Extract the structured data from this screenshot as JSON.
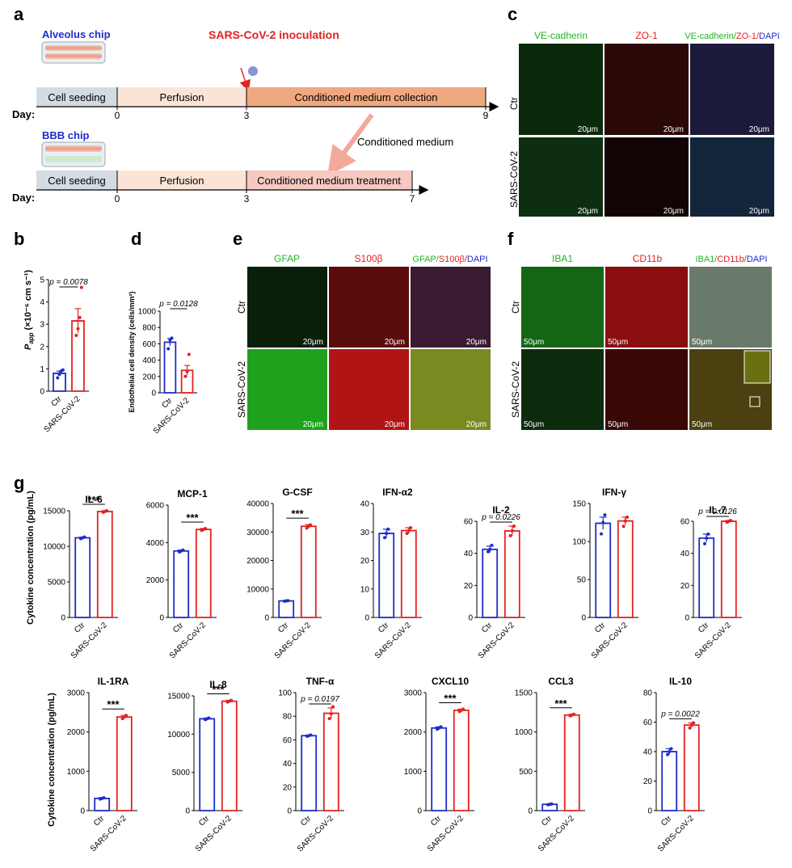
{
  "panel_labels": {
    "a": "a",
    "b": "b",
    "c": "c",
    "d": "d",
    "e": "e",
    "f": "f",
    "g": "g"
  },
  "panel_a": {
    "alveolus_chip": "Alveolus chip",
    "bbb_chip": "BBB chip",
    "inoculation": "SARS-CoV-2 inoculation",
    "conditioned_medium": "Conditioned medium",
    "day_label": "Day:",
    "row1": {
      "seg1": "Cell seeding",
      "seg2": "Perfusion",
      "seg3": "Conditioned medium collection",
      "ticks": [
        "0",
        "3",
        "9"
      ]
    },
    "row2": {
      "seg1": "Cell seeding",
      "seg2": "Perfusion",
      "seg3": "Conditioned medium treatment",
      "ticks": [
        "0",
        "3",
        "7"
      ]
    }
  },
  "panel_c": {
    "columns": [
      "VE-cadherin",
      "ZO-1",
      "VE-cadherin/",
      "ZO-1/",
      "DAPI"
    ],
    "rows": [
      "Ctr",
      "SARS-CoV-2"
    ],
    "scale": "20μm"
  },
  "panel_e": {
    "columns": [
      "GFAP",
      "S100β",
      "GFAP/",
      "S100β/",
      "DAPI"
    ],
    "rows": [
      "Ctr",
      "SARS-CoV-2"
    ],
    "scale": "20μm"
  },
  "panel_f": {
    "columns": [
      "IBA1",
      "CD11b",
      "IBA1/",
      "CD11b/",
      "DAPI"
    ],
    "rows": [
      "Ctr",
      "SARS-CoV-2"
    ],
    "scale": "50μm"
  },
  "colors": {
    "ctr": "#1f2dc8",
    "sars": "#e32222",
    "green": "#22b522",
    "red": "#e32222",
    "blue": "#1f2dc8"
  },
  "chart_data": [
    {
      "id": "b",
      "type": "bar",
      "categories": [
        "Ctr",
        "SARS-CoV-2"
      ],
      "ylabel": "P",
      "ylabel_sub": "app",
      "ylabel_unit": "(×10⁻⁶ cm s⁻¹)",
      "ylim": [
        0,
        5
      ],
      "yticks": [
        "0",
        "1",
        "2",
        "3",
        "4",
        "5"
      ],
      "values": [
        0.8,
        3.15
      ],
      "errors": [
        0.1,
        0.55
      ],
      "points": [
        [
          0.6,
          0.75,
          0.9,
          0.95
        ],
        [
          2.5,
          2.8,
          3.3,
          4.65
        ]
      ],
      "pvalue": "p = 0.0078"
    },
    {
      "id": "d",
      "type": "bar",
      "categories": [
        "Ctr",
        "SARS-CoV-2"
      ],
      "ylabel": "Endothelial cell density (cells/mm²)",
      "ylim": [
        0,
        1000
      ],
      "yticks": [
        "0",
        "200",
        "400",
        "600",
        "800",
        "1000"
      ],
      "values": [
        620,
        275
      ],
      "errors": [
        45,
        60
      ],
      "points": [
        [
          540,
          650,
          670
        ],
        [
          200,
          260,
          470
        ]
      ],
      "pvalue": "p = 0.0128"
    },
    {
      "id": "IL-6",
      "type": "bar",
      "title": "IL-6",
      "categories": [
        "Ctr",
        "SARS-CoV-2"
      ],
      "ylim": [
        0,
        15000
      ],
      "yticks": [
        "0",
        "5000",
        "10000",
        "15000"
      ],
      "values": [
        11200,
        14900
      ],
      "errors": [
        100,
        100
      ],
      "points": [
        [
          11100,
          11200,
          11300
        ],
        [
          14800,
          14900,
          15000
        ]
      ],
      "sig": "***"
    },
    {
      "id": "MCP-1",
      "type": "bar",
      "title": "MCP-1",
      "categories": [
        "Ctr",
        "SARS-CoV-2"
      ],
      "ylim": [
        0,
        6000
      ],
      "yticks": [
        "0",
        "2000",
        "4000",
        "6000"
      ],
      "values": [
        3550,
        4700
      ],
      "errors": [
        50,
        50
      ],
      "points": [
        [
          3500,
          3550,
          3600
        ],
        [
          4650,
          4700,
          4750
        ]
      ],
      "sig": "***"
    },
    {
      "id": "G-CSF",
      "type": "bar",
      "title": "G-CSF",
      "categories": [
        "Ctr",
        "SARS-CoV-2"
      ],
      "ylim": [
        0,
        40000
      ],
      "yticks": [
        "0",
        "10000",
        "20000",
        "30000",
        "40000"
      ],
      "values": [
        5800,
        32000
      ],
      "errors": [
        100,
        600
      ],
      "points": [
        [
          5700,
          5800,
          5900
        ],
        [
          31400,
          32000,
          32500
        ]
      ],
      "sig": "***"
    },
    {
      "id": "IFN-α2",
      "type": "bar",
      "title": "IFN-α2",
      "categories": [
        "Ctr",
        "SARS-CoV-2"
      ],
      "ylim": [
        0,
        40
      ],
      "yticks": [
        "0",
        "10",
        "20",
        "30",
        "40"
      ],
      "values": [
        29.5,
        30.5
      ],
      "errors": [
        1.5,
        1
      ],
      "points": [
        [
          28,
          29.5,
          31
        ],
        [
          29.5,
          30.5,
          31.5
        ]
      ]
    },
    {
      "id": "IL-2",
      "type": "bar",
      "title": "IL-2",
      "categories": [
        "Ctr",
        "SARS-CoV-2"
      ],
      "ylim": [
        0,
        60
      ],
      "yticks": [
        "0",
        "20",
        "40",
        "60"
      ],
      "values": [
        42.5,
        54
      ],
      "errors": [
        2,
        3
      ],
      "points": [
        [
          41,
          42.5,
          45
        ],
        [
          51,
          54,
          57
        ]
      ],
      "pvalue": "p = 0.0226"
    },
    {
      "id": "IFN-γ",
      "type": "bar",
      "title": "IFN-γ",
      "categories": [
        "Ctr",
        "SARS-CoV-2"
      ],
      "ylim": [
        0,
        150
      ],
      "yticks": [
        "0",
        "50",
        "100",
        "150"
      ],
      "values": [
        124,
        127
      ],
      "errors": [
        8,
        5
      ],
      "points": [
        [
          110,
          125,
          135
        ],
        [
          120,
          127,
          132
        ]
      ]
    },
    {
      "id": "IL-7",
      "type": "bar",
      "title": "IL-7",
      "categories": [
        "Ctr",
        "SARS-CoV-2"
      ],
      "ylim": [
        0,
        60
      ],
      "yticks": [
        "0",
        "20",
        "40",
        "60"
      ],
      "values": [
        49.5,
        60
      ],
      "errors": [
        2.5,
        0.5
      ],
      "points": [
        [
          46,
          49.5,
          52
        ],
        [
          59.5,
          60,
          60.5
        ]
      ],
      "pvalue": "p = 0.0126"
    },
    {
      "id": "IL-1RA",
      "type": "bar",
      "title": "IL-1RA",
      "categories": [
        "Ctr",
        "SARS-CoV-2"
      ],
      "ylim": [
        0,
        3000
      ],
      "yticks": [
        "0",
        "1000",
        "2000",
        "3000"
      ],
      "values": [
        310,
        2380
      ],
      "errors": [
        20,
        40
      ],
      "points": [
        [
          295,
          310,
          325
        ],
        [
          2340,
          2380,
          2420
        ]
      ],
      "sig": "***"
    },
    {
      "id": "IL-8",
      "type": "bar",
      "title": "IL-8",
      "categories": [
        "Ctr",
        "SARS-CoV-2"
      ],
      "ylim": [
        0,
        15000
      ],
      "yticks": [
        "0",
        "5000",
        "10000",
        "15000"
      ],
      "values": [
        12000,
        14300
      ],
      "errors": [
        100,
        120
      ],
      "points": [
        [
          11900,
          12000,
          12100
        ],
        [
          14200,
          14300,
          14400
        ]
      ],
      "sig": "***"
    },
    {
      "id": "TNF-α",
      "type": "bar",
      "title": "TNF-α",
      "categories": [
        "Ctr",
        "SARS-CoV-2"
      ],
      "ylim": [
        0,
        100
      ],
      "yticks": [
        "0",
        "20",
        "40",
        "60",
        "80",
        "100"
      ],
      "values": [
        63.5,
        82.5
      ],
      "errors": [
        0.5,
        4.5
      ],
      "points": [
        [
          63,
          63.5,
          64
        ],
        [
          78,
          82,
          88
        ]
      ],
      "pvalue": "p = 0.0197"
    },
    {
      "id": "CXCL10",
      "type": "bar",
      "title": "CXCL10",
      "categories": [
        "Ctr",
        "SARS-CoV-2"
      ],
      "ylim": [
        0,
        3000
      ],
      "yticks": [
        "0",
        "1000",
        "2000",
        "3000"
      ],
      "values": [
        2100,
        2550
      ],
      "errors": [
        30,
        30
      ],
      "points": [
        [
          2070,
          2100,
          2130
        ],
        [
          2520,
          2550,
          2580
        ]
      ],
      "sig": "***"
    },
    {
      "id": "CCL3",
      "type": "bar",
      "title": "CCL3",
      "categories": [
        "Ctr",
        "SARS-CoV-2"
      ],
      "ylim": [
        0,
        1500
      ],
      "yticks": [
        "0",
        "500",
        "1000",
        "1500"
      ],
      "values": [
        80,
        1215
      ],
      "errors": [
        5,
        10
      ],
      "points": [
        [
          75,
          80,
          85
        ],
        [
          1205,
          1215,
          1225
        ]
      ],
      "sig": "***"
    },
    {
      "id": "IL-10",
      "type": "bar",
      "title": "IL-10",
      "categories": [
        "Ctr",
        "SARS-CoV-2"
      ],
      "ylim": [
        0,
        80
      ],
      "yticks": [
        "0",
        "20",
        "40",
        "60",
        "80"
      ],
      "values": [
        40,
        58
      ],
      "errors": [
        2,
        1.5
      ],
      "points": [
        [
          38,
          40,
          42
        ],
        [
          56,
          58,
          59.5
        ]
      ],
      "pvalue": "p = 0.0022"
    }
  ],
  "panel_g_ylabel": "Cytokine concentration (pg/mL)"
}
